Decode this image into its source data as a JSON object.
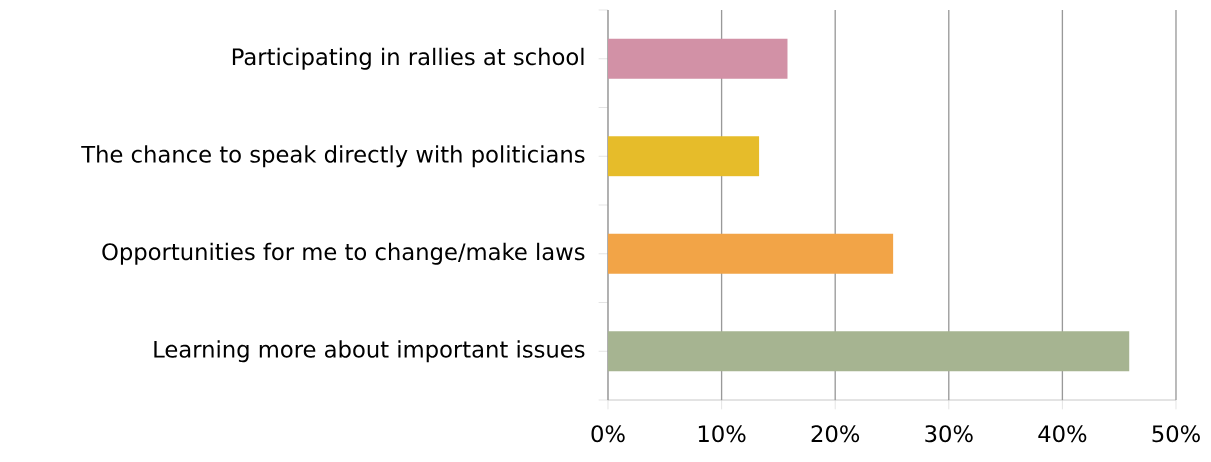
{
  "chart_data": {
    "type": "bar",
    "orientation": "horizontal",
    "categories": [
      "Participating in rallies at school",
      "The chance to speak directly with politicians",
      "Opportunities for me to change/make laws",
      "Learning more about important issues"
    ],
    "values": [
      15.8,
      13.3,
      25.1,
      45.9
    ],
    "colors": [
      "#d291a6",
      "#e6bc2a",
      "#f2a447",
      "#a6b491"
    ],
    "xlim": [
      0,
      50
    ],
    "xticks": [
      {
        "value": 0,
        "label": "0%"
      },
      {
        "value": 10,
        "label": "10%"
      },
      {
        "value": 20,
        "label": "20%"
      },
      {
        "value": 30,
        "label": "30%"
      },
      {
        "value": 40,
        "label": "40%"
      },
      {
        "value": 50,
        "label": "50%"
      }
    ],
    "grid": "x"
  }
}
